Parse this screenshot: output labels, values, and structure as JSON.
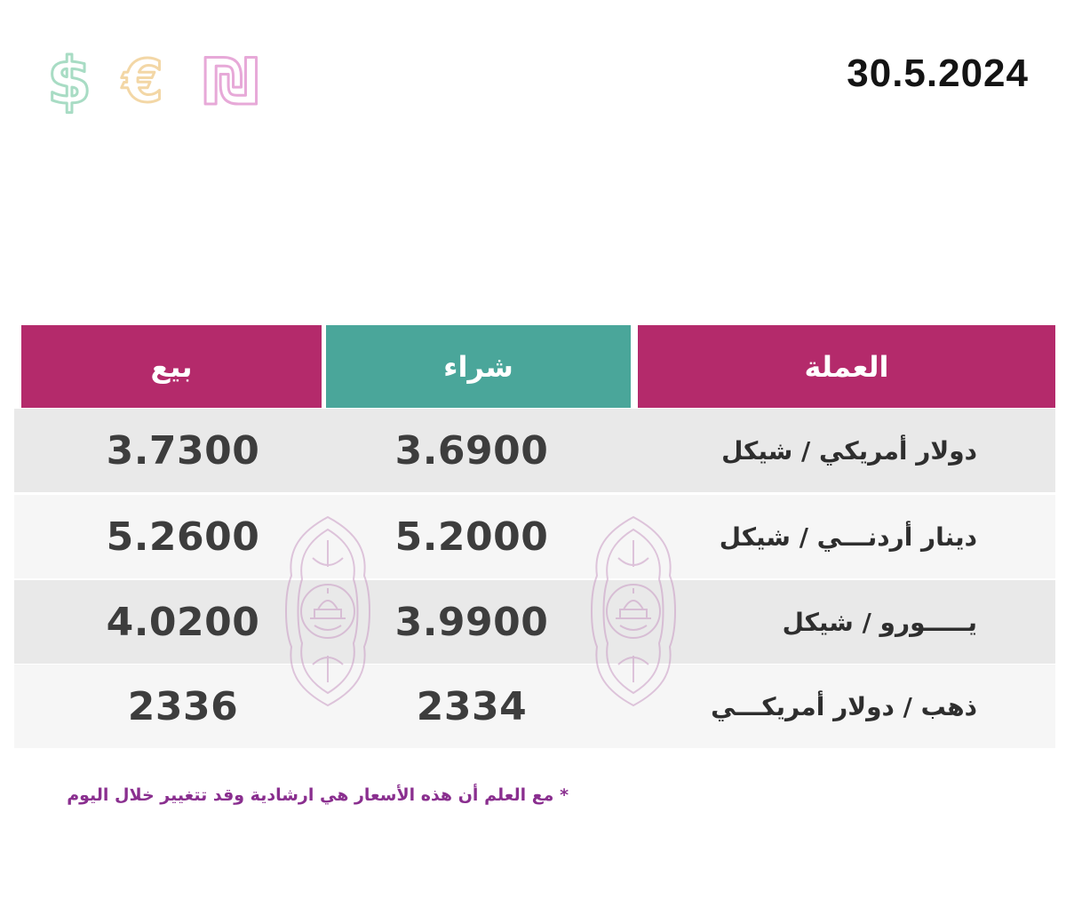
{
  "date": "30.5.2024",
  "currency_icons": [
    {
      "name": "dollar-icon",
      "glyph": "$",
      "color": "#a8dcc4"
    },
    {
      "name": "euro-icon",
      "glyph": "€",
      "color": "#f3d7a6"
    },
    {
      "name": "shekel-icon",
      "glyph": "₪",
      "color": "#e7a9d8"
    }
  ],
  "table": {
    "headers": {
      "currency": "العملة",
      "buy": "شراء",
      "sell": "بيع"
    },
    "rows": [
      {
        "currency": "دولار أمريكي / شيكل",
        "buy": "3.6900",
        "sell": "3.7300"
      },
      {
        "currency": "دينار أردنـــي / شيكل",
        "buy": "5.2000",
        "sell": "5.2600"
      },
      {
        "currency": "يـــــورو / شيكل",
        "buy": "3.9900",
        "sell": "4.0200"
      },
      {
        "currency": "ذهب / دولار أمريكـــي",
        "buy": "2334",
        "sell": "2336"
      }
    ]
  },
  "note": "* مع العلم أن هذه الأسعار هي ارشادية وقد تتغيير خلال اليوم",
  "colors": {
    "header_magenta": "#b42a6b",
    "header_teal": "#4aa69a",
    "note": "#8a2f8f"
  }
}
